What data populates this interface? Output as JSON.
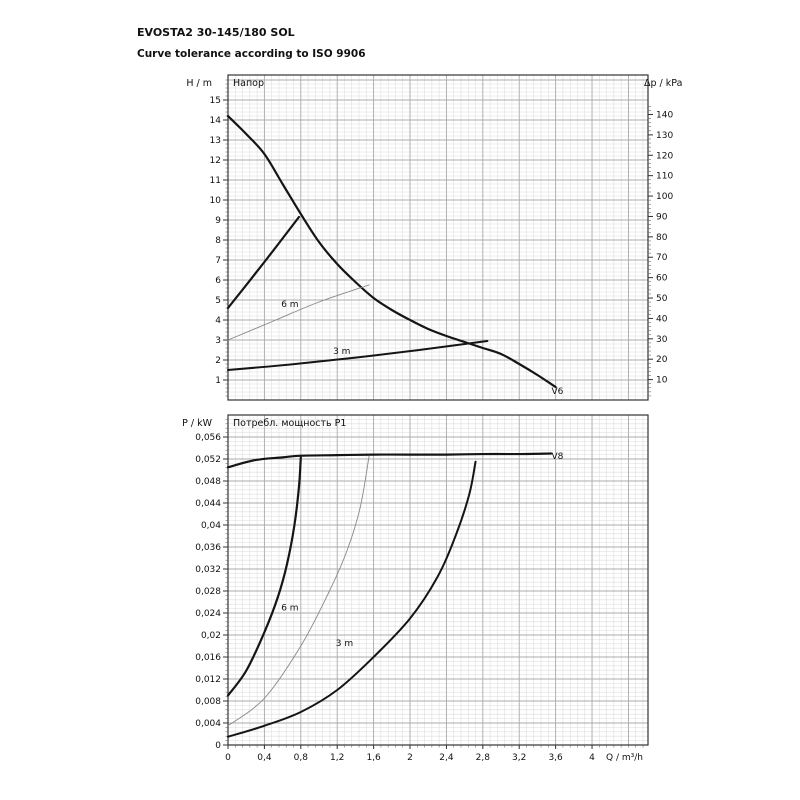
{
  "page": {
    "title": "EVOSTA2 30-145/180 SOL",
    "subtitle": "Curve tolerance according to ISO 9906"
  },
  "chart_data": [
    {
      "id": "head-chart",
      "type": "line",
      "title": "Напор",
      "ylabel": "H / m",
      "xlabel": "",
      "xlim": [
        0,
        4.615
      ],
      "ylim": [
        0,
        16.25
      ],
      "x_major": 0.4,
      "x_minor": 0.08,
      "y_major": 1,
      "y_minor": 0.2,
      "grid": true,
      "legend_position": "none",
      "y_ticks": [
        [
          1,
          "1"
        ],
        [
          2,
          "2"
        ],
        [
          3,
          "3"
        ],
        [
          4,
          "4"
        ],
        [
          5,
          "5"
        ],
        [
          6,
          "6"
        ],
        [
          7,
          "7"
        ],
        [
          8,
          "8"
        ],
        [
          9,
          "9"
        ],
        [
          10,
          "10"
        ],
        [
          11,
          "11"
        ],
        [
          12,
          "12"
        ],
        [
          13,
          "13"
        ],
        [
          14,
          "14"
        ],
        [
          15,
          "15"
        ]
      ],
      "right_axis": {
        "label": "Δp / kPa",
        "per_unit": 9.807,
        "minor_step": 2,
        "ticks": [
          [
            10,
            "10"
          ],
          [
            20,
            "20"
          ],
          [
            30,
            "30"
          ],
          [
            40,
            "40"
          ],
          [
            50,
            "50"
          ],
          [
            60,
            "60"
          ],
          [
            70,
            "70"
          ],
          [
            80,
            "80"
          ],
          [
            90,
            "90"
          ],
          [
            100,
            "100"
          ],
          [
            110,
            "110"
          ],
          [
            120,
            "120"
          ],
          [
            130,
            "130"
          ],
          [
            140,
            "140"
          ]
        ]
      },
      "series": [
        {
          "name": "max-speed-head-curve",
          "label": "V6",
          "color": "#151515",
          "width": 2.2,
          "points": [
            [
              0,
              14.2
            ],
            [
              0.2,
              13.3
            ],
            [
              0.4,
              12.3
            ],
            [
              0.6,
              10.8
            ],
            [
              0.8,
              9.3
            ],
            [
              1.0,
              7.9
            ],
            [
              1.2,
              6.8
            ],
            [
              1.4,
              5.9
            ],
            [
              1.6,
              5.1
            ],
            [
              1.8,
              4.5
            ],
            [
              2.0,
              4.0
            ],
            [
              2.2,
              3.55
            ],
            [
              2.4,
              3.2
            ],
            [
              2.6,
              2.9
            ],
            [
              2.8,
              2.6
            ],
            [
              3.0,
              2.3
            ],
            [
              3.2,
              1.8
            ],
            [
              3.4,
              1.25
            ],
            [
              3.6,
              0.65
            ]
          ]
        },
        {
          "name": "min-speed-boundary",
          "label": "",
          "color": "#151515",
          "width": 2.2,
          "points": [
            [
              0,
              4.6
            ],
            [
              0.4,
              6.9
            ],
            [
              0.78,
              9.15
            ]
          ]
        },
        {
          "name": "curve-6m",
          "label": "6 m",
          "color": "#888888",
          "width": 0.9,
          "points": [
            [
              0,
              3.0
            ],
            [
              0.5,
              3.95
            ],
            [
              1.0,
              4.9
            ],
            [
              1.55,
              5.75
            ]
          ]
        },
        {
          "name": "curve-3m",
          "label": "3 m",
          "color": "#151515",
          "width": 2.0,
          "points": [
            [
              0,
              1.5
            ],
            [
              0.7,
              1.78
            ],
            [
              1.4,
              2.12
            ],
            [
              2.1,
              2.5
            ],
            [
              2.85,
              2.95
            ]
          ]
        }
      ],
      "annotations": [
        {
          "text": "6 m",
          "x": 0.68,
          "y": 4.65
        },
        {
          "text": "3 m",
          "x": 1.25,
          "y": 2.3
        },
        {
          "text": "V6",
          "x": 3.62,
          "y": 0.3
        }
      ]
    },
    {
      "id": "power-chart",
      "type": "line",
      "title": "Потребл. мощность P1",
      "ylabel": "P / kW",
      "xlabel": "Q / m³/h",
      "xlim": [
        0,
        4.615
      ],
      "ylim": [
        0,
        0.06
      ],
      "x_major": 0.4,
      "x_minor": 0.08,
      "y_major": 0.004,
      "y_minor": 0.0008,
      "grid": true,
      "legend_position": "none",
      "y_ticks": [
        [
          0,
          "0"
        ],
        [
          0.004,
          "0,004"
        ],
        [
          0.008,
          "0,008"
        ],
        [
          0.012,
          "0,012"
        ],
        [
          0.016,
          "0,016"
        ],
        [
          0.02,
          "0,02"
        ],
        [
          0.024,
          "0,024"
        ],
        [
          0.028,
          "0,028"
        ],
        [
          0.032,
          "0,032"
        ],
        [
          0.036,
          "0,036"
        ],
        [
          0.04,
          "0,04"
        ],
        [
          0.044,
          "0,044"
        ],
        [
          0.048,
          "0,048"
        ],
        [
          0.052,
          "0,052"
        ],
        [
          0.056,
          "0,056"
        ]
      ],
      "x_ticks": [
        [
          0,
          "0"
        ],
        [
          0.4,
          "0,4"
        ],
        [
          0.8,
          "0,8"
        ],
        [
          1.2,
          "1,2"
        ],
        [
          1.6,
          "1,6"
        ],
        [
          2,
          "2"
        ],
        [
          2.4,
          "2,4"
        ],
        [
          2.8,
          "2,8"
        ],
        [
          3.2,
          "3,2"
        ],
        [
          3.6,
          "3,6"
        ],
        [
          4,
          "4"
        ]
      ],
      "series": [
        {
          "name": "max-speed-power-curve",
          "label": "V8",
          "color": "#151515",
          "width": 2.2,
          "points": [
            [
              0,
              0.0505
            ],
            [
              0.3,
              0.0518
            ],
            [
              0.6,
              0.0523
            ],
            [
              0.8,
              0.0526
            ],
            [
              1.2,
              0.0527
            ],
            [
              1.6,
              0.0528
            ],
            [
              2.0,
              0.0528
            ],
            [
              2.4,
              0.0528
            ],
            [
              2.8,
              0.0529
            ],
            [
              3.2,
              0.0529
            ],
            [
              3.55,
              0.053
            ]
          ]
        },
        {
          "name": "min-boundary-power",
          "label": "",
          "color": "#151515",
          "width": 2.2,
          "points": [
            [
              0,
              0.009
            ],
            [
              0.2,
              0.0135
            ],
            [
              0.4,
              0.0205
            ],
            [
              0.55,
              0.027
            ],
            [
              0.65,
              0.033
            ],
            [
              0.73,
              0.04
            ],
            [
              0.78,
              0.047
            ],
            [
              0.8,
              0.0523
            ]
          ]
        },
        {
          "name": "power-6m",
          "label": "6 m",
          "color": "#888888",
          "width": 0.9,
          "points": [
            [
              0,
              0.0035
            ],
            [
              0.4,
              0.0085
            ],
            [
              0.8,
              0.018
            ],
            [
              1.1,
              0.0275
            ],
            [
              1.3,
              0.035
            ],
            [
              1.45,
              0.043
            ],
            [
              1.55,
              0.0525
            ]
          ]
        },
        {
          "name": "power-3m",
          "label": "3 m",
          "color": "#151515",
          "width": 2.0,
          "points": [
            [
              0,
              0.0015
            ],
            [
              0.4,
              0.0035
            ],
            [
              0.8,
              0.006
            ],
            [
              1.2,
              0.01
            ],
            [
              1.6,
              0.016
            ],
            [
              2.0,
              0.023
            ],
            [
              2.3,
              0.0305
            ],
            [
              2.5,
              0.038
            ],
            [
              2.65,
              0.0455
            ],
            [
              2.72,
              0.0515
            ]
          ]
        }
      ],
      "annotations": [
        {
          "text": "6 m",
          "x": 0.68,
          "y": 0.0245
        },
        {
          "text": "3 m",
          "x": 1.28,
          "y": 0.018
        },
        {
          "text": "V8",
          "x": 3.62,
          "y": 0.052
        }
      ]
    }
  ]
}
